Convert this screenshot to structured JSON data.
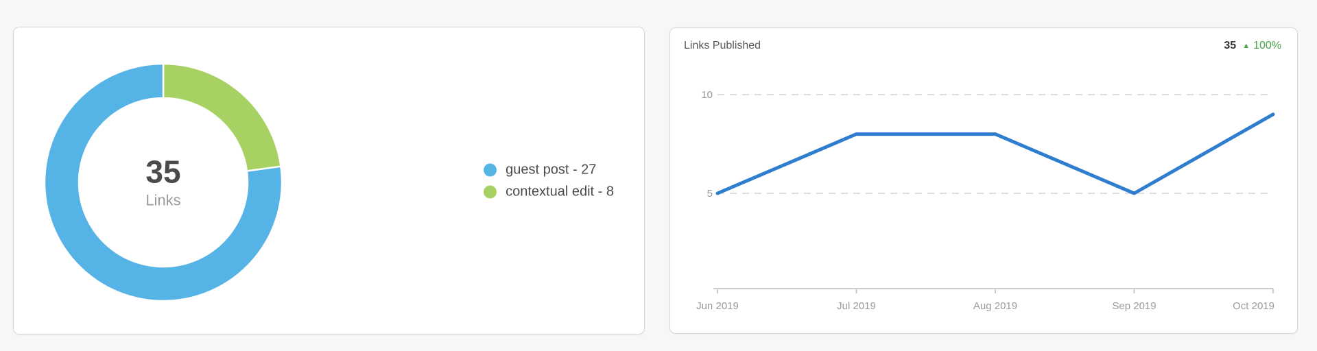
{
  "page": {
    "background": "#f7f7f8"
  },
  "chart_data": [
    {
      "type": "pie",
      "subtype": "donut",
      "center": {
        "value": "35",
        "label": "Links"
      },
      "slices": [
        {
          "label": "guest post",
          "value": 27,
          "color": "#56b3e5"
        },
        {
          "label": "contextual edit",
          "value": 8,
          "color": "#a8d164"
        }
      ],
      "legend_separator": " - ",
      "legend_position": "right",
      "start_angle_deg": 0,
      "direction": "clockwise"
    },
    {
      "type": "line",
      "title": "Links Published",
      "stat": {
        "value": "35",
        "delta": "100%",
        "direction": "up",
        "color": "#46a546"
      },
      "x": [
        "Jun 2019",
        "Jul 2019",
        "Aug 2019",
        "Sep 2019",
        "Oct 2019"
      ],
      "values": [
        5,
        8,
        8,
        5,
        9
      ],
      "yticks": [
        5,
        10
      ],
      "ylim": [
        0,
        11
      ],
      "color": "#2e7dcf",
      "grid": "dashed-horizontal",
      "legend_position": "none"
    }
  ]
}
